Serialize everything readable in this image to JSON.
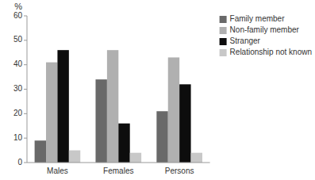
{
  "chart_data": {
    "type": "bar",
    "categories": [
      "Males",
      "Females",
      "Persons"
    ],
    "series": [
      {
        "name": "Family member",
        "values": [
          9,
          34,
          21
        ],
        "color": "#696969"
      },
      {
        "name": "Non-family member",
        "values": [
          41,
          46,
          43
        ],
        "color": "#b0b0b0"
      },
      {
        "name": "Stranger",
        "values": [
          46,
          16,
          32
        ],
        "color": "#0d0d0d"
      },
      {
        "name": "Relationship not known",
        "values": [
          5,
          4,
          4
        ],
        "color": "#c8c8c8"
      }
    ],
    "y_label": "%",
    "ylim": [
      0,
      60
    ],
    "yticks": [
      0,
      10,
      20,
      30,
      40,
      50,
      60
    ],
    "grid": false,
    "legend": "upper right"
  }
}
